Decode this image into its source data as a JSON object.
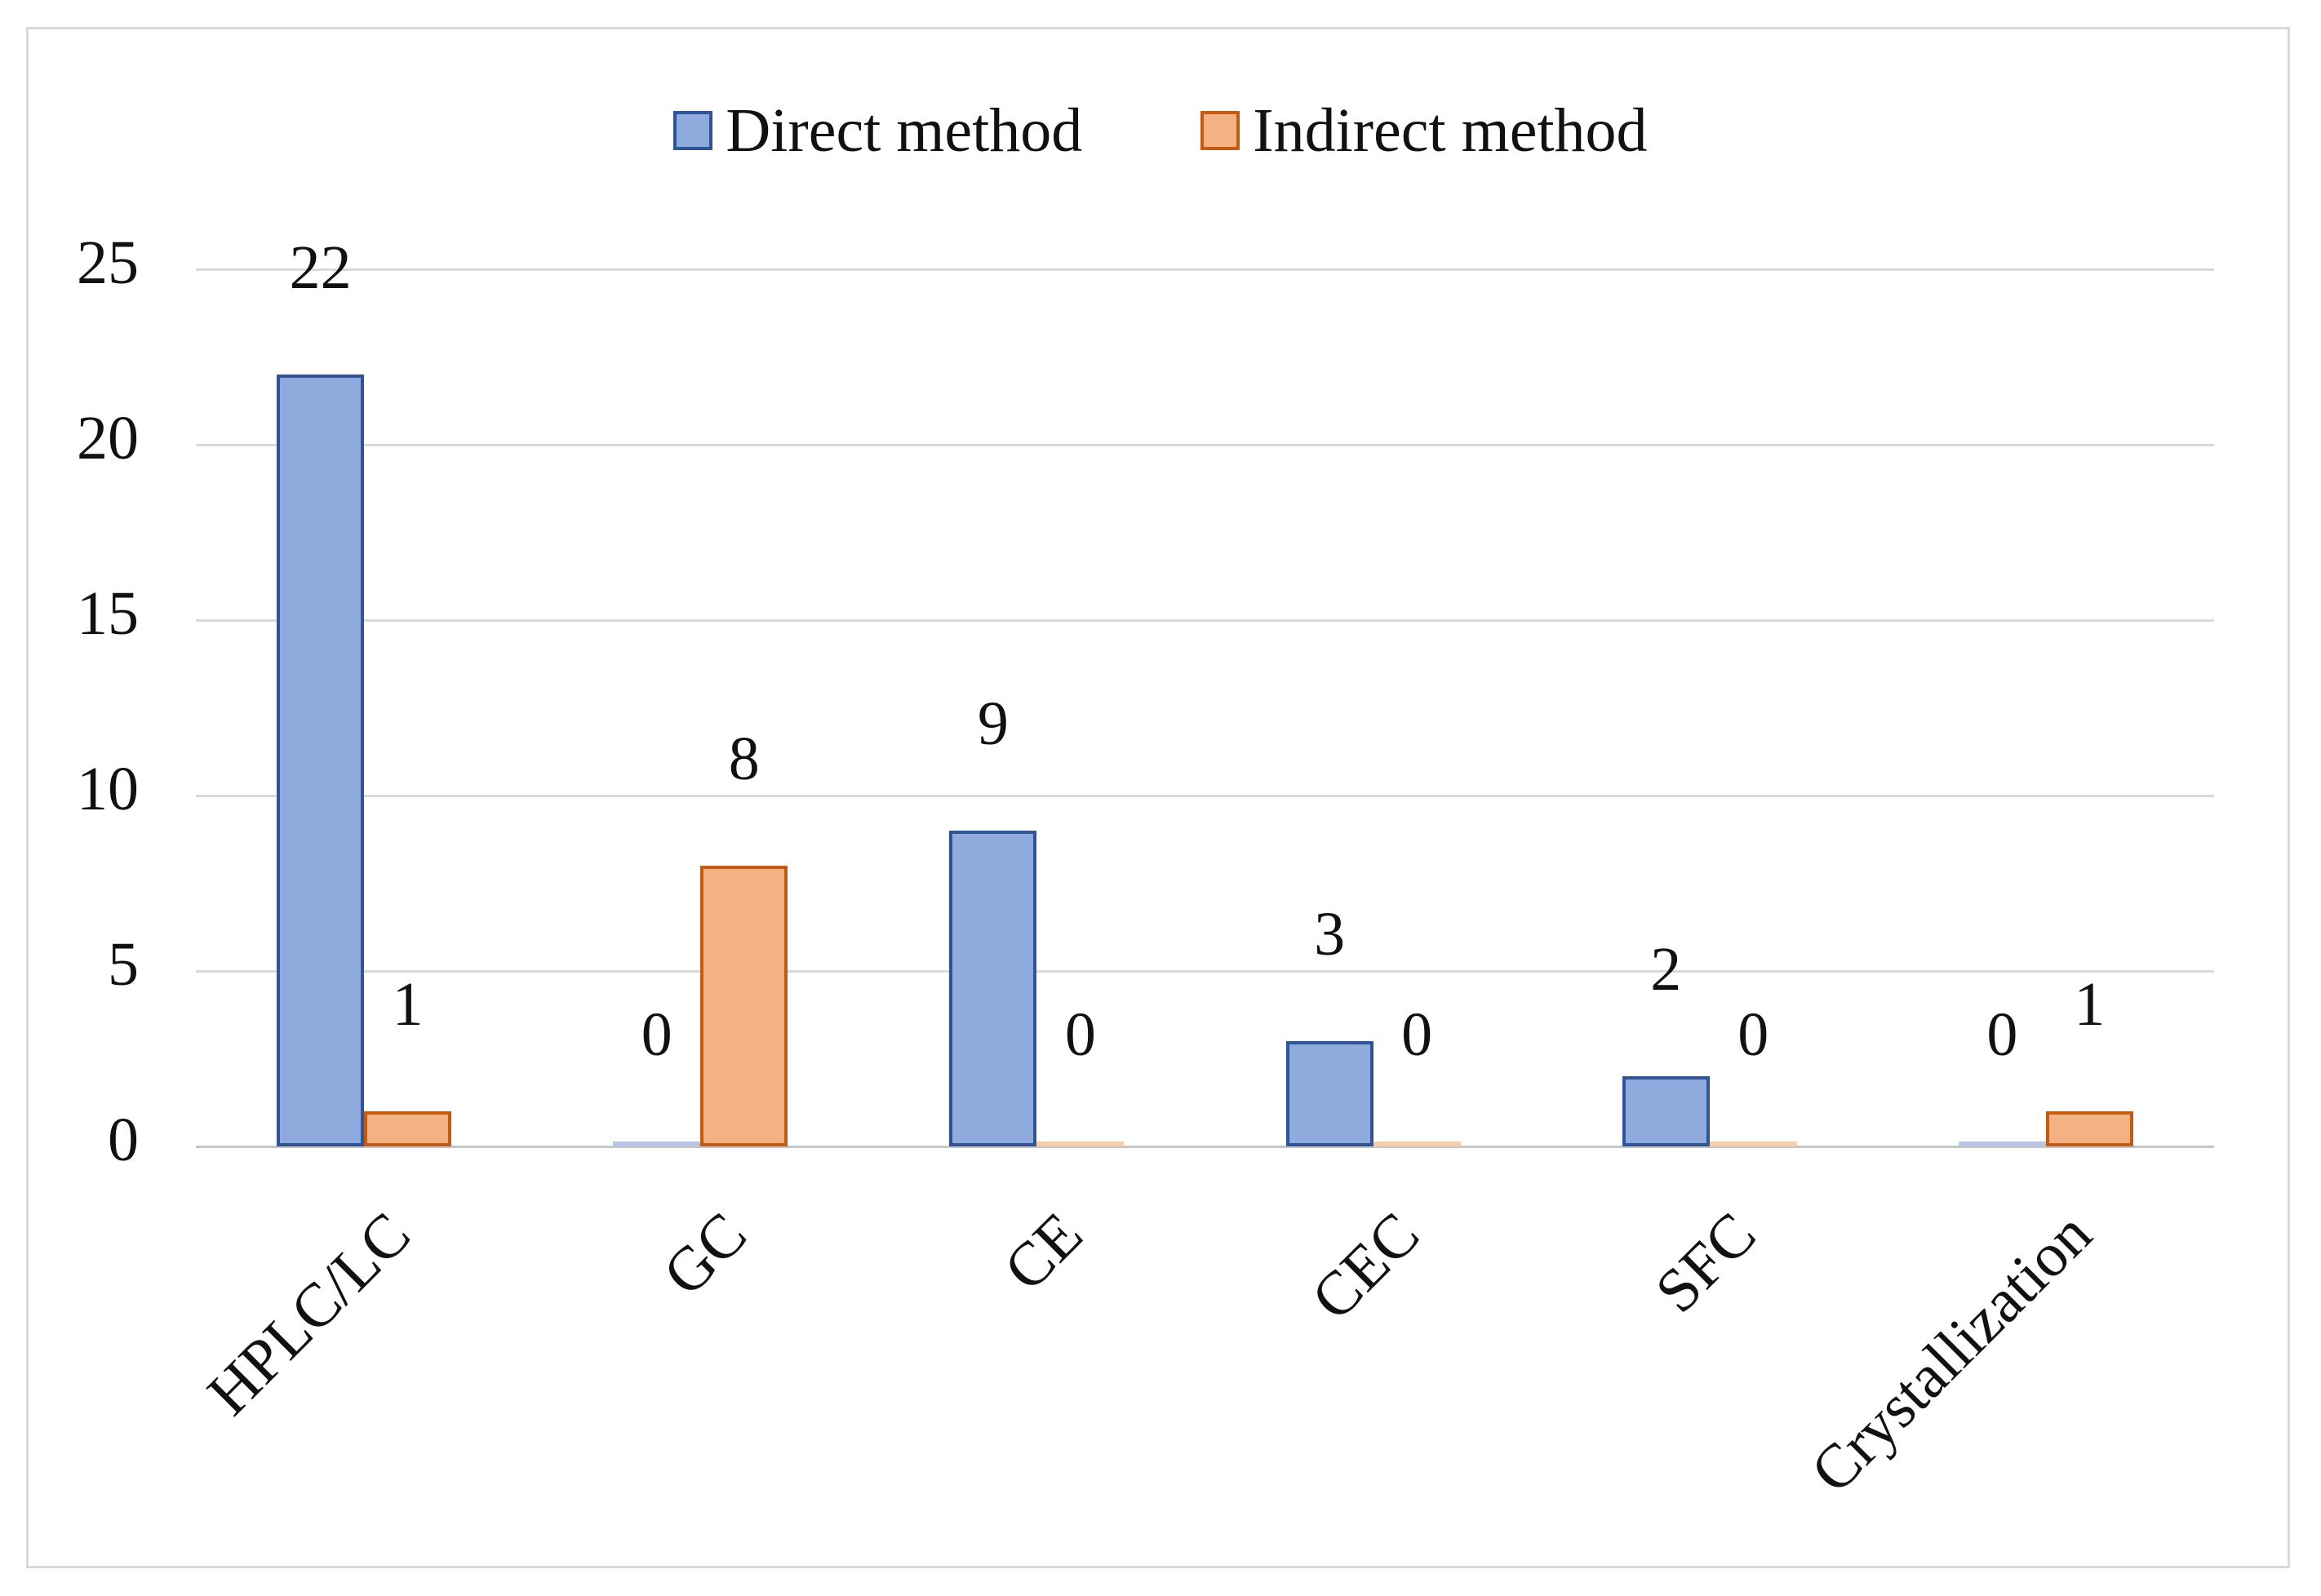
{
  "chart_data": {
    "type": "bar",
    "title": "",
    "xlabel": "",
    "ylabel": "",
    "categories": [
      "HPLC/LC",
      "GC",
      "CE",
      "CEC",
      "SFC",
      "Crystallization"
    ],
    "series": [
      {
        "name": "Direct method",
        "values": [
          22,
          0,
          9,
          3,
          2,
          0
        ],
        "fill": "#8FAADC",
        "border": "#2F5597",
        "zero_fill": "#B6C5E8"
      },
      {
        "name": "Indirect method",
        "values": [
          1,
          8,
          0,
          0,
          0,
          1
        ],
        "fill": "#F4B183",
        "border": "#C55A11",
        "zero_fill": "#F6CCA9"
      }
    ],
    "data_labels": true,
    "ylim": [
      0,
      25
    ],
    "yticks": [
      0,
      5,
      10,
      15,
      20,
      25
    ],
    "grid": "horizontal",
    "legend_position": "top-center",
    "x_label_rotation_deg": -45,
    "colors": {
      "gridline": "#D9D9D9",
      "axis_line": "#C6C6C6",
      "text": "#111111",
      "frame_border": "#D9D9D9",
      "background": "#FFFFFF"
    }
  }
}
